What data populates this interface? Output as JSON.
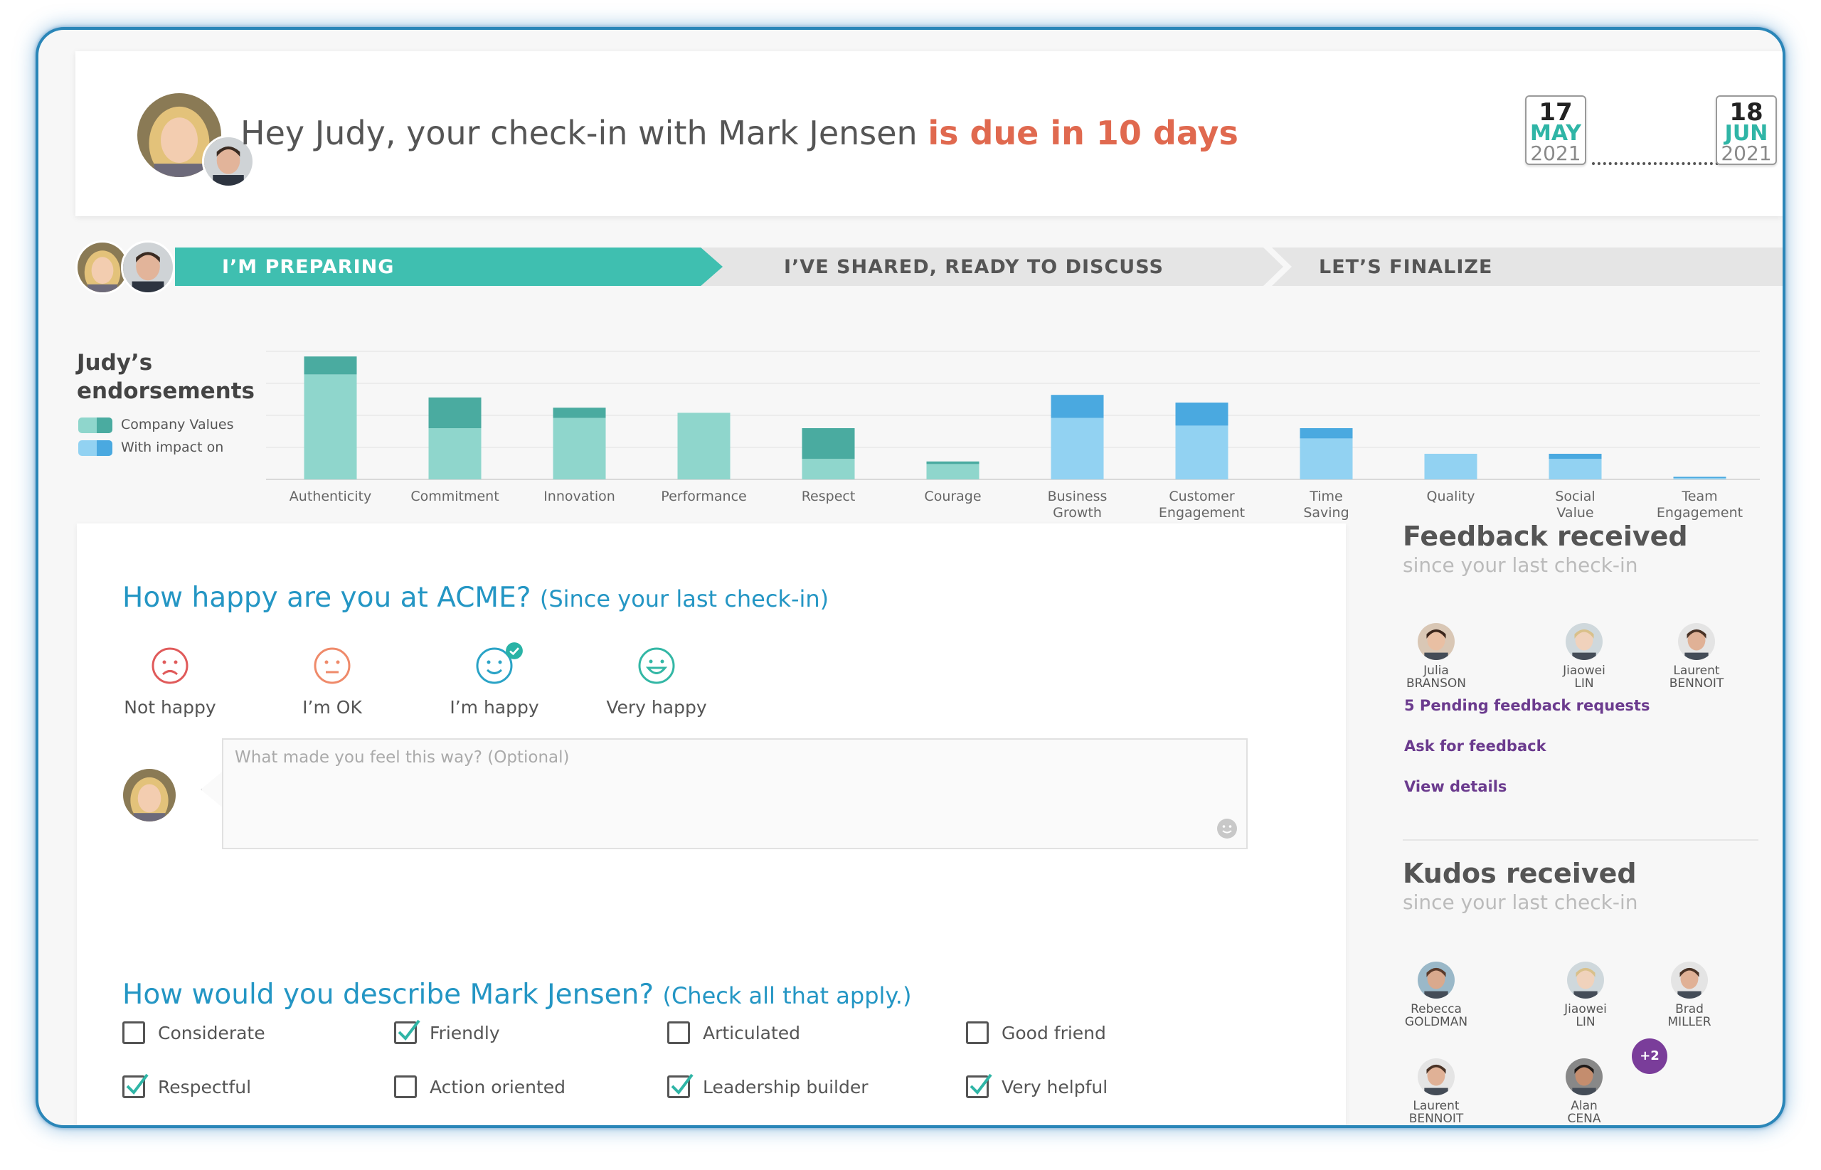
{
  "header": {
    "greeting": "Hey Judy, your check-in with Mark Jensen ",
    "due_text": "is due in 10 days",
    "start_date": {
      "day": "17",
      "month": "MAY",
      "year": "2021"
    },
    "end_date": {
      "day": "18",
      "month": "JUN",
      "year": "2021"
    }
  },
  "steps": {
    "step1": "I’M PREPARING",
    "step2": "I’VE SHARED, READY TO DISCUSS",
    "step3": "LET’S FINALIZE"
  },
  "endorsements": {
    "title_line1": "Judy’s",
    "title_line2": "endorsements",
    "legend": [
      "Company Values",
      "With impact on"
    ]
  },
  "chart_data": {
    "type": "bar",
    "stacked": true,
    "categories": [
      "Authenticity",
      "Commitment",
      "Innovation",
      "Performance",
      "Respect",
      "Courage",
      "Business Growth",
      "Customer Engagement",
      "Time Saving",
      "Quality",
      "Social Value",
      "Team Engagement"
    ],
    "category_labels": [
      [
        "Authenticity"
      ],
      [
        "Commitment"
      ],
      [
        "Innovation"
      ],
      [
        "Performance"
      ],
      [
        "Respect"
      ],
      [
        "Courage"
      ],
      [
        "Business",
        "Growth"
      ],
      [
        "Customer",
        "Engagement"
      ],
      [
        "Time",
        "Saving"
      ],
      [
        "Quality"
      ],
      [
        "Social",
        "Value"
      ],
      [
        "Team",
        "Engagement"
      ]
    ],
    "groups": [
      "Company Values",
      "Company Values",
      "Company Values",
      "Company Values",
      "Company Values",
      "Company Values",
      "With impact on",
      "With impact on",
      "With impact on",
      "With impact on",
      "With impact on",
      "With impact on"
    ],
    "base_values": [
      4.1,
      2.0,
      2.4,
      2.6,
      0.8,
      0.6,
      2.4,
      2.1,
      1.6,
      1.0,
      0.8,
      0.05
    ],
    "top_values": [
      0.7,
      1.2,
      0.4,
      0.0,
      1.2,
      0.1,
      0.9,
      0.9,
      0.4,
      0.0,
      0.2,
      0.05
    ],
    "ylim": [
      0,
      5
    ],
    "grid": true,
    "colors": {
      "values_base": "#8fd6cc",
      "values_top": "#4aaba0",
      "impact_base": "#92d2f2",
      "impact_top": "#4aa9e0"
    }
  },
  "happiness": {
    "title": "How happy are you at ACME?",
    "subtitle": "(Since your last check-in)",
    "options": [
      {
        "label": "Not happy",
        "color": "#e05a5a"
      },
      {
        "label": "I’m OK",
        "color": "#ef8a6a"
      },
      {
        "label": "I’m happy",
        "color": "#2aa3c6",
        "selected": true
      },
      {
        "label": "Very happy",
        "color": "#33b7a5"
      }
    ],
    "comment_placeholder": "What made you feel this way? (Optional)"
  },
  "describe": {
    "title": "How would you describe Mark Jensen?",
    "subtitle": "(Check all that apply.)",
    "traits": [
      {
        "label": "Considerate",
        "checked": false
      },
      {
        "label": "Friendly",
        "checked": true
      },
      {
        "label": "Articulated",
        "checked": false
      },
      {
        "label": "Good friend",
        "checked": false
      },
      {
        "label": "Respectful",
        "checked": true
      },
      {
        "label": "Action oriented",
        "checked": false
      },
      {
        "label": "Leadership builder",
        "checked": true
      },
      {
        "label": "Very helpful",
        "checked": true
      }
    ]
  },
  "feedback": {
    "title": "Feedback received",
    "subtitle": "since your last check-in",
    "people": [
      {
        "first": "Julia",
        "last": "BRANSON"
      },
      {
        "first": "Jiaowei",
        "last": "LIN"
      },
      {
        "first": "Laurent",
        "last": "BENNOIT"
      }
    ],
    "pending_link": "5 Pending feedback requests",
    "ask_link": "Ask for feedback",
    "details_link": "View details"
  },
  "kudos": {
    "title": "Kudos received",
    "subtitle": "since your last check-in",
    "people": [
      {
        "first": "Rebecca",
        "last": "GOLDMAN"
      },
      {
        "first": "Jiaowei",
        "last": "LIN"
      },
      {
        "first": "Brad",
        "last": "MILLER"
      },
      {
        "first": "Laurent",
        "last": "BENNOIT"
      },
      {
        "first": "Alan",
        "last": "CENA"
      }
    ],
    "more": "+2"
  }
}
